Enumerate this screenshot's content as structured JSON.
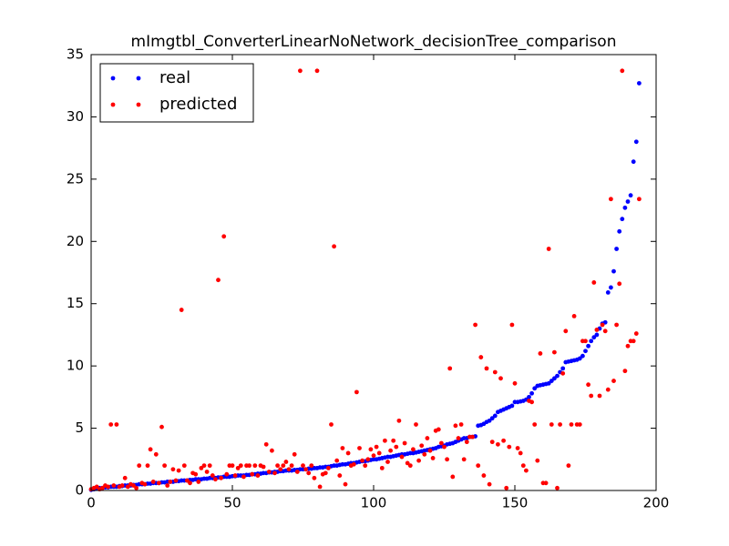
{
  "chart_data": {
    "type": "scatter",
    "title": "mImgtbl_ConverterLinearNoNetwork_decisionTree_comparison",
    "x": [
      0,
      1,
      2,
      3,
      4,
      5,
      6,
      7,
      8,
      9,
      10,
      11,
      12,
      13,
      14,
      15,
      16,
      17,
      18,
      19,
      20,
      21,
      22,
      23,
      24,
      25,
      26,
      27,
      28,
      29,
      30,
      31,
      32,
      33,
      34,
      35,
      36,
      37,
      38,
      39,
      40,
      41,
      42,
      43,
      44,
      45,
      46,
      47,
      48,
      49,
      50,
      51,
      52,
      53,
      54,
      55,
      56,
      57,
      58,
      59,
      60,
      61,
      62,
      63,
      64,
      65,
      66,
      67,
      68,
      69,
      70,
      71,
      72,
      73,
      74,
      75,
      76,
      77,
      78,
      79,
      80,
      81,
      82,
      83,
      84,
      85,
      86,
      87,
      88,
      89,
      90,
      91,
      92,
      93,
      94,
      95,
      96,
      97,
      98,
      99,
      100,
      101,
      102,
      103,
      104,
      105,
      106,
      107,
      108,
      109,
      110,
      111,
      112,
      113,
      114,
      115,
      116,
      117,
      118,
      119,
      120,
      121,
      122,
      123,
      124,
      125,
      126,
      127,
      128,
      129,
      130,
      131,
      132,
      133,
      134,
      135,
      136,
      137,
      138,
      139,
      140,
      141,
      142,
      143,
      144,
      145,
      146,
      147,
      148,
      149,
      150,
      151,
      152,
      153,
      154,
      155,
      156,
      157,
      158,
      159,
      160,
      161,
      162,
      163,
      164,
      165,
      166,
      167,
      168,
      169,
      170,
      171,
      172,
      173,
      174,
      175,
      176,
      177,
      178,
      179,
      180,
      181,
      182,
      183,
      184,
      185,
      186,
      187,
      188,
      189,
      190,
      191,
      192,
      193,
      194
    ],
    "series": [
      {
        "name": "real",
        "color": "#0000ff",
        "values": [
          0.05,
          0.1,
          0.15,
          0.2,
          0.2,
          0.25,
          0.25,
          0.3,
          0.3,
          0.3,
          0.35,
          0.35,
          0.4,
          0.4,
          0.4,
          0.45,
          0.45,
          0.5,
          0.5,
          0.5,
          0.55,
          0.55,
          0.6,
          0.6,
          0.6,
          0.65,
          0.65,
          0.7,
          0.7,
          0.7,
          0.75,
          0.75,
          0.8,
          0.8,
          0.8,
          0.85,
          0.85,
          0.9,
          0.9,
          0.9,
          0.95,
          0.95,
          1.0,
          1.0,
          1.0,
          1.05,
          1.05,
          1.1,
          1.1,
          1.1,
          1.15,
          1.15,
          1.2,
          1.2,
          1.2,
          1.25,
          1.25,
          1.3,
          1.3,
          1.35,
          1.35,
          1.4,
          1.4,
          1.45,
          1.45,
          1.5,
          1.5,
          1.55,
          1.55,
          1.6,
          1.6,
          1.6,
          1.65,
          1.65,
          1.7,
          1.7,
          1.7,
          1.75,
          1.75,
          1.8,
          1.8,
          1.85,
          1.85,
          1.9,
          1.9,
          1.95,
          2.0,
          2.0,
          2.05,
          2.1,
          2.1,
          2.15,
          2.2,
          2.2,
          2.25,
          2.3,
          2.35,
          2.35,
          2.4,
          2.45,
          2.5,
          2.5,
          2.55,
          2.6,
          2.65,
          2.7,
          2.7,
          2.75,
          2.8,
          2.85,
          2.9,
          2.9,
          2.95,
          3.0,
          3.0,
          3.05,
          3.1,
          3.15,
          3.2,
          3.25,
          3.3,
          3.35,
          3.4,
          3.5,
          3.55,
          3.6,
          3.7,
          3.75,
          3.8,
          3.9,
          4.0,
          4.1,
          4.2,
          4.2,
          4.3,
          4.3,
          4.35,
          5.2,
          5.25,
          5.35,
          5.5,
          5.6,
          5.8,
          6.0,
          6.3,
          6.4,
          6.5,
          6.6,
          6.7,
          6.8,
          7.1,
          7.1,
          7.15,
          7.2,
          7.3,
          7.5,
          7.8,
          8.2,
          8.4,
          8.45,
          8.5,
          8.55,
          8.6,
          8.8,
          9.0,
          9.2,
          9.5,
          9.8,
          10.3,
          10.35,
          10.4,
          10.45,
          10.5,
          10.6,
          10.8,
          11.2,
          11.6,
          12.0,
          12.3,
          12.5,
          13.0,
          13.4,
          13.5,
          15.9,
          16.3,
          17.6,
          19.4,
          20.8,
          21.8,
          22.7,
          23.2,
          23.7,
          26.4,
          28.0,
          32.7
        ]
      },
      {
        "name": "predicted",
        "color": "#ff0000",
        "values": [
          0.1,
          0.2,
          0.3,
          0.1,
          0.2,
          0.4,
          0.3,
          5.3,
          0.4,
          5.3,
          0.3,
          0.4,
          1.0,
          0.3,
          0.5,
          0.4,
          0.2,
          2.0,
          0.6,
          0.5,
          2.0,
          3.3,
          0.7,
          2.9,
          0.6,
          5.1,
          2.0,
          0.4,
          0.7,
          1.7,
          0.8,
          1.6,
          14.5,
          2.0,
          0.8,
          0.6,
          1.4,
          1.3,
          0.7,
          1.8,
          2.0,
          1.5,
          2.0,
          1.2,
          0.9,
          16.9,
          1.0,
          20.4,
          1.3,
          2.0,
          2.0,
          1.2,
          1.8,
          2.0,
          1.1,
          2.0,
          2.0,
          1.3,
          2.0,
          1.2,
          2.0,
          1.9,
          3.7,
          1.5,
          3.2,
          1.4,
          2.0,
          1.7,
          2.0,
          2.3,
          1.7,
          2.0,
          2.9,
          1.5,
          33.7,
          2.0,
          1.7,
          1.4,
          2.0,
          1.0,
          33.7,
          0.3,
          1.3,
          1.4,
          1.8,
          5.3,
          19.6,
          2.4,
          1.2,
          3.4,
          0.5,
          3.0,
          2.0,
          2.1,
          7.9,
          3.4,
          2.4,
          2.0,
          2.5,
          3.3,
          2.8,
          3.5,
          3.0,
          1.8,
          4.0,
          2.3,
          3.2,
          4.0,
          3.5,
          5.6,
          2.7,
          3.8,
          2.2,
          2.0,
          3.3,
          5.3,
          2.4,
          3.6,
          2.9,
          4.2,
          3.2,
          2.6,
          4.8,
          4.9,
          3.8,
          3.5,
          2.5,
          9.8,
          1.1,
          5.2,
          4.2,
          5.3,
          2.5,
          3.9,
          4.3,
          4.3,
          13.3,
          2.0,
          10.7,
          1.2,
          9.8,
          0.5,
          3.9,
          9.5,
          3.7,
          9.0,
          4.0,
          0.2,
          3.5,
          13.3,
          8.6,
          3.4,
          3.0,
          2.0,
          1.6,
          7.2,
          7.1,
          5.3,
          2.4,
          11.0,
          0.6,
          0.6,
          19.4,
          5.3,
          11.1,
          0.2,
          5.3,
          9.4,
          12.8,
          2.0,
          5.3,
          14.0,
          5.3,
          5.3,
          12.0,
          12.0,
          8.5,
          7.6,
          16.7,
          12.9,
          7.6,
          13.3,
          12.8,
          8.1,
          23.4,
          8.8,
          13.3,
          16.6,
          33.7,
          9.6,
          11.6,
          12.0,
          12.0,
          12.6,
          23.4
        ]
      }
    ],
    "xlim": [
      0,
      200
    ],
    "ylim": [
      0,
      35
    ],
    "xticks": [
      0,
      50,
      100,
      150,
      200
    ],
    "yticks": [
      0,
      5,
      10,
      15,
      20,
      25,
      30,
      35
    ],
    "legend": "upper left"
  }
}
